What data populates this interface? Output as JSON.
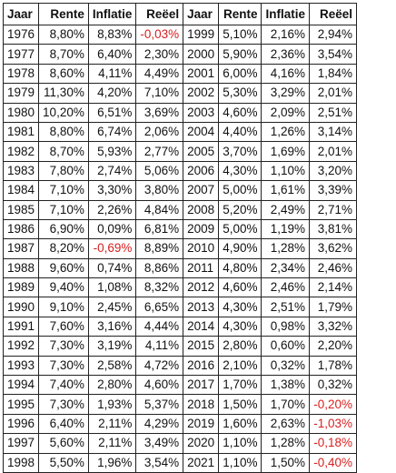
{
  "headers": [
    "Jaar",
    "Rente",
    "Inflatie",
    "Reëel",
    "Jaar",
    "Rente",
    "Inflatie",
    "Reëel"
  ],
  "rows": [
    [
      "1976",
      "8,80%",
      "8,83%",
      "-0,03%",
      "1999",
      "5,10%",
      "2,16%",
      "2,94%"
    ],
    [
      "1977",
      "8,70%",
      "6,40%",
      "2,30%",
      "2000",
      "5,90%",
      "2,36%",
      "3,54%"
    ],
    [
      "1978",
      "8,60%",
      "4,11%",
      "4,49%",
      "2001",
      "6,00%",
      "4,16%",
      "1,84%"
    ],
    [
      "1979",
      "11,30%",
      "4,20%",
      "7,10%",
      "2002",
      "5,30%",
      "3,29%",
      "2,01%"
    ],
    [
      "1980",
      "10,20%",
      "6,51%",
      "3,69%",
      "2003",
      "4,60%",
      "2,09%",
      "2,51%"
    ],
    [
      "1981",
      "8,80%",
      "6,74%",
      "2,06%",
      "2004",
      "4,40%",
      "1,26%",
      "3,14%"
    ],
    [
      "1982",
      "8,70%",
      "5,93%",
      "2,77%",
      "2005",
      "3,70%",
      "1,69%",
      "2,01%"
    ],
    [
      "1983",
      "7,80%",
      "2,74%",
      "5,06%",
      "2006",
      "4,30%",
      "1,10%",
      "3,20%"
    ],
    [
      "1984",
      "7,10%",
      "3,30%",
      "3,80%",
      "2007",
      "5,00%",
      "1,61%",
      "3,39%"
    ],
    [
      "1985",
      "7,10%",
      "2,26%",
      "4,84%",
      "2008",
      "5,20%",
      "2,49%",
      "2,71%"
    ],
    [
      "1986",
      "6,90%",
      "0,09%",
      "6,81%",
      "2009",
      "5,00%",
      "1,19%",
      "3,81%"
    ],
    [
      "1987",
      "8,20%",
      "-0,69%",
      "8,89%",
      "2010",
      "4,90%",
      "1,28%",
      "3,62%"
    ],
    [
      "1988",
      "9,60%",
      "0,74%",
      "8,86%",
      "2011",
      "4,80%",
      "2,34%",
      "2,46%"
    ],
    [
      "1989",
      "9,40%",
      "1,08%",
      "8,32%",
      "2012",
      "4,60%",
      "2,46%",
      "2,14%"
    ],
    [
      "1990",
      "9,10%",
      "2,45%",
      "6,65%",
      "2013",
      "4,30%",
      "2,51%",
      "1,79%"
    ],
    [
      "1991",
      "7,60%",
      "3,16%",
      "4,44%",
      "2014",
      "4,30%",
      "0,98%",
      "3,32%"
    ],
    [
      "1992",
      "7,30%",
      "3,19%",
      "4,11%",
      "2015",
      "2,80%",
      "0,60%",
      "2,20%"
    ],
    [
      "1993",
      "7,30%",
      "2,58%",
      "4,72%",
      "2016",
      "2,10%",
      "0,32%",
      "1,78%"
    ],
    [
      "1994",
      "7,40%",
      "2,80%",
      "4,60%",
      "2017",
      "1,70%",
      "1,38%",
      "0,32%"
    ],
    [
      "1995",
      "7,30%",
      "1,93%",
      "5,37%",
      "2018",
      "1,50%",
      "1,70%",
      "-0,20%"
    ],
    [
      "1996",
      "6,40%",
      "2,11%",
      "4,29%",
      "2019",
      "1,60%",
      "2,63%",
      "-1,03%"
    ],
    [
      "1997",
      "5,60%",
      "2,11%",
      "3,49%",
      "2020",
      "1,10%",
      "1,28%",
      "-0,18%"
    ],
    [
      "1998",
      "5,50%",
      "1,96%",
      "3,54%",
      "2021",
      "1,10%",
      "1,50%",
      "-0,40%"
    ]
  ],
  "colors": {
    "negative": "#d62020",
    "text": "#111111",
    "border": "#222222"
  }
}
